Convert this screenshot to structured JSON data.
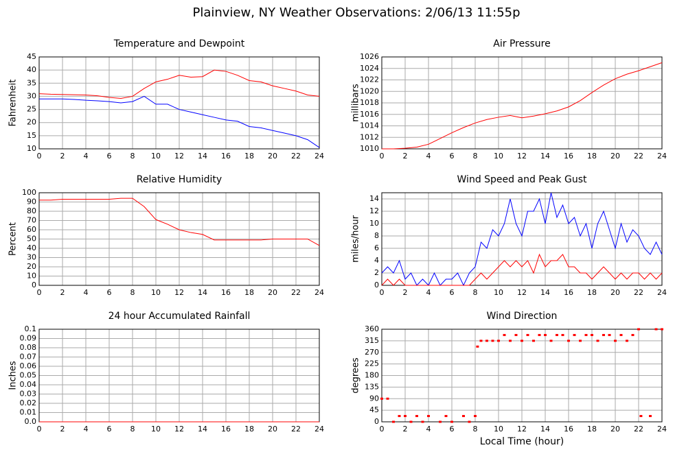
{
  "title": "Plainview, NY Weather Observations: 2/06/13 11:55p",
  "chart_data": [
    {
      "type": "line",
      "title": "Temperature and Dewpoint",
      "ylabel": "Fahrenheit",
      "x": [
        0,
        1,
        2,
        3,
        4,
        5,
        6,
        7,
        8,
        9,
        10,
        11,
        12,
        13,
        14,
        15,
        16,
        17,
        18,
        19,
        20,
        21,
        22,
        23,
        24
      ],
      "series": [
        {
          "color": "#ff0000",
          "values": [
            31,
            30.8,
            30.7,
            30.6,
            30.5,
            30.2,
            29.6,
            29.2,
            30,
            33,
            35.5,
            36.5,
            38,
            37.3,
            37.5,
            40,
            39.5,
            38,
            36,
            35.5,
            34,
            33,
            32,
            30.5,
            30
          ]
        },
        {
          "color": "#0000ff",
          "values": [
            29,
            29,
            29,
            28.8,
            28.5,
            28.3,
            28,
            27.5,
            28,
            30,
            27,
            27,
            25,
            24,
            23,
            22,
            21,
            20.5,
            18.5,
            18,
            17,
            16,
            15,
            13.5,
            10.5
          ]
        }
      ],
      "xlim": [
        0,
        24
      ],
      "xticks": [
        0,
        2,
        4,
        6,
        8,
        10,
        12,
        14,
        16,
        18,
        20,
        22,
        24
      ],
      "ylim": [
        10,
        45
      ],
      "yticks": [
        10,
        15,
        20,
        25,
        30,
        35,
        40,
        45
      ],
      "grid": true
    },
    {
      "type": "line",
      "title": "Air Pressure",
      "ylabel": "millibars",
      "x": [
        0,
        1,
        2,
        3,
        4,
        5,
        6,
        7,
        8,
        9,
        10,
        11,
        12,
        13,
        14,
        15,
        16,
        17,
        18,
        19,
        20,
        21,
        22,
        23,
        24
      ],
      "series": [
        {
          "color": "#ff0000",
          "values": [
            1010,
            1010,
            1010.1,
            1010.3,
            1010.8,
            1011.8,
            1012.8,
            1013.7,
            1014.5,
            1015.1,
            1015.5,
            1015.8,
            1015.4,
            1015.7,
            1016.1,
            1016.6,
            1017.3,
            1018.4,
            1019.8,
            1021.1,
            1022.2,
            1023,
            1023.6,
            1024.3,
            1025
          ]
        }
      ],
      "xlim": [
        0,
        24
      ],
      "xticks": [
        0,
        2,
        4,
        6,
        8,
        10,
        12,
        14,
        16,
        18,
        20,
        22,
        24
      ],
      "ylim": [
        1010,
        1026
      ],
      "yticks": [
        1010,
        1012,
        1014,
        1016,
        1018,
        1020,
        1022,
        1024,
        1026
      ],
      "grid": true
    },
    {
      "type": "line",
      "title": "Relative Humidity",
      "ylabel": "Percent",
      "x": [
        0,
        1,
        2,
        3,
        4,
        5,
        6,
        7,
        8,
        9,
        10,
        11,
        12,
        13,
        14,
        15,
        16,
        17,
        18,
        19,
        20,
        21,
        22,
        23,
        24
      ],
      "series": [
        {
          "color": "#ff0000",
          "values": [
            92,
            92,
            93,
            93,
            93,
            93,
            93,
            94,
            94,
            85,
            71,
            66,
            60,
            57,
            55,
            49,
            49,
            49,
            49,
            49,
            50,
            50,
            50,
            50,
            43
          ]
        }
      ],
      "xlim": [
        0,
        24
      ],
      "xticks": [
        0,
        2,
        4,
        6,
        8,
        10,
        12,
        14,
        16,
        18,
        20,
        22,
        24
      ],
      "ylim": [
        0,
        100
      ],
      "yticks": [
        0,
        10,
        20,
        30,
        40,
        50,
        60,
        70,
        80,
        90,
        100
      ],
      "grid": true
    },
    {
      "type": "line",
      "title": "Wind Speed and Peak Gust",
      "ylabel": "miles/hour",
      "x": [
        0,
        0.5,
        1,
        1.5,
        2,
        2.5,
        3,
        3.5,
        4,
        4.5,
        5,
        5.5,
        6,
        6.5,
        7,
        7.5,
        8,
        8.5,
        9,
        9.5,
        10,
        10.5,
        11,
        11.5,
        12,
        12.5,
        13,
        13.5,
        14,
        14.5,
        15,
        15.5,
        16,
        16.5,
        17,
        17.5,
        18,
        18.5,
        19,
        19.5,
        20,
        20.5,
        21,
        21.5,
        22,
        22.5,
        23,
        23.5,
        24
      ],
      "series": [
        {
          "color": "#0000ff",
          "values": [
            2,
            3,
            2,
            4,
            1,
            2,
            0,
            1,
            0,
            2,
            0,
            1,
            1,
            2,
            0,
            2,
            3,
            7,
            6,
            9,
            8,
            10,
            14,
            10,
            8,
            12,
            12,
            14,
            10,
            15,
            11,
            13,
            10,
            11,
            8,
            10,
            6,
            10,
            12,
            9,
            6,
            10,
            7,
            9,
            8,
            6,
            5,
            7,
            5
          ]
        },
        {
          "color": "#ff0000",
          "values": [
            0,
            1,
            0,
            1,
            0,
            0,
            0,
            0,
            0,
            0,
            0,
            0,
            0,
            0,
            0,
            0,
            1,
            2,
            1,
            2,
            3,
            4,
            3,
            4,
            3,
            4,
            2,
            5,
            3,
            4,
            4,
            5,
            3,
            3,
            2,
            2,
            1,
            2,
            3,
            2,
            1,
            2,
            1,
            2,
            2,
            1,
            2,
            1,
            2
          ]
        }
      ],
      "xlim": [
        0,
        24
      ],
      "xticks": [
        0,
        2,
        4,
        6,
        8,
        10,
        12,
        14,
        16,
        18,
        20,
        22,
        24
      ],
      "ylim": [
        0,
        15
      ],
      "yticks": [
        0,
        2,
        4,
        6,
        8,
        10,
        12,
        14
      ],
      "grid": true
    },
    {
      "type": "line",
      "title": "24 hour Accumulated Rainfall",
      "ylabel": "Inches",
      "x": [
        0,
        24
      ],
      "series": [
        {
          "color": "#ff0000",
          "values": [
            0,
            0
          ]
        }
      ],
      "xlim": [
        0,
        24
      ],
      "xticks": [
        0,
        2,
        4,
        6,
        8,
        10,
        12,
        14,
        16,
        18,
        20,
        22,
        24
      ],
      "ylim": [
        0,
        0.1
      ],
      "yticks": [
        {
          "value": 0,
          "label": "0.0"
        },
        0.01,
        0.02,
        0.03,
        0.04,
        0.05,
        0.06,
        0.07,
        0.08,
        0.09,
        0.1
      ],
      "grid": true
    },
    {
      "type": "scatter",
      "title": "Wind Direction",
      "ylabel": "degrees",
      "xlabel": "Local Time (hour)",
      "x": [
        0,
        0.5,
        1,
        1.5,
        2,
        2.5,
        3,
        3.5,
        4,
        5,
        5.5,
        6,
        7,
        7.5,
        8,
        8.2,
        8.5,
        9,
        9.5,
        10,
        10.5,
        11,
        11.5,
        12,
        12.5,
        13,
        13.5,
        14,
        14.5,
        15,
        15.5,
        16,
        16.5,
        17,
        17.5,
        18,
        18.5,
        19,
        19.5,
        20,
        20.5,
        21,
        21.5,
        22,
        22.2,
        23,
        23.5,
        24
      ],
      "series": [
        {
          "color": "#ff0000",
          "values": [
            90,
            90,
            0,
            22.5,
            22.5,
            0,
            22.5,
            0,
            22.5,
            0,
            22.5,
            0,
            22.5,
            0,
            22.5,
            292.5,
            315,
            315,
            315,
            315,
            337.5,
            315,
            337.5,
            315,
            337.5,
            315,
            337.5,
            337.5,
            315,
            337.5,
            337.5,
            315,
            337.5,
            315,
            337.5,
            337.5,
            315,
            337.5,
            337.5,
            315,
            337.5,
            315,
            337.5,
            360,
            22.5,
            22.5,
            360,
            360
          ]
        }
      ],
      "xlim": [
        0,
        24
      ],
      "xticks": [
        0,
        2,
        4,
        6,
        8,
        10,
        12,
        14,
        16,
        18,
        20,
        22,
        24
      ],
      "ylim": [
        0,
        360
      ],
      "yticks": [
        0,
        45,
        90,
        135,
        180,
        225,
        270,
        315,
        360
      ],
      "grid": true
    }
  ]
}
